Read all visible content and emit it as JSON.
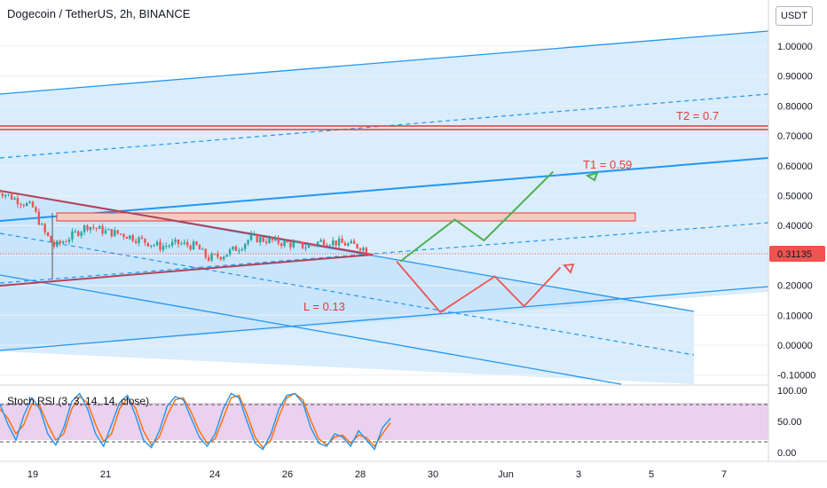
{
  "header": {
    "symbol_title": "Dogecoin / TetherUS, 2h, BINANCE",
    "currency_button": "USDT"
  },
  "colors": {
    "channel_line": "#2196f3",
    "channel_fill": "#bbdefb",
    "resistance_red": "#e53935",
    "zone_fill": "#f8c9c1",
    "triangle_line": "#b0435a",
    "bull_path": "#4caf50",
    "bear_path": "#ef5350",
    "candle_up": "#26a69a",
    "candle_down": "#ef5350",
    "price_tag": "#ef5350",
    "stoch_k": "#2196f3",
    "stoch_d": "#ff6d00",
    "stoch_band": "#e1bee7"
  },
  "chart_data": {
    "type": "candlestick",
    "title": "Dogecoin / TetherUS, 2h, BINANCE",
    "price_axis": {
      "ticks": [
        "1.00000",
        "0.90000",
        "0.80000",
        "0.70000",
        "0.60000",
        "0.50000",
        "0.40000",
        "0.30000",
        "0.20000",
        "0.10000",
        "0.00000",
        "-0.10000"
      ],
      "range": [
        -0.12,
        1.05
      ],
      "last_price": "0.31135"
    },
    "time_axis": {
      "ticks": [
        "19",
        "21",
        "24",
        "26",
        "28",
        "30",
        "Jun",
        "3",
        "5",
        "7"
      ]
    },
    "price_path": {
      "dates": [
        18.0,
        18.5,
        19.0,
        19.3,
        19.6,
        20.0,
        20.5,
        21.0,
        21.5,
        22.0,
        22.5,
        23.0,
        23.5,
        23.8,
        24.2,
        24.7,
        25.0,
        25.5,
        26.0,
        26.5,
        27.0,
        27.5,
        28.0,
        28.3
      ],
      "closes": [
        0.52,
        0.49,
        0.46,
        0.38,
        0.33,
        0.36,
        0.4,
        0.38,
        0.37,
        0.35,
        0.33,
        0.34,
        0.33,
        0.29,
        0.3,
        0.33,
        0.36,
        0.35,
        0.34,
        0.33,
        0.35,
        0.34,
        0.33,
        0.31
      ]
    },
    "annotations": [
      {
        "label": "T2 = 0.7",
        "value": 0.73
      },
      {
        "label": "T1 = 0.59",
        "value": 0.59
      },
      {
        "label": "L = 0.13",
        "value": 0.13
      }
    ],
    "projection_bull": {
      "dates": [
        29.1,
        30.6,
        31.4,
        33.3
      ],
      "values": [
        0.28,
        0.42,
        0.35,
        0.58
      ]
    },
    "projection_bear": {
      "dates": [
        29.0,
        30.2,
        31.7,
        32.5,
        33.5
      ],
      "values": [
        0.28,
        0.11,
        0.23,
        0.13,
        0.26
      ]
    },
    "stoch_rsi": {
      "label": "Stoch RSI (3, 3, 14, 14, close)",
      "ticks": [
        "100.00",
        "50.00",
        "0.00"
      ],
      "upper_band": 80,
      "lower_band": 20,
      "k": [
        78,
        45,
        20,
        60,
        88,
        70,
        30,
        12,
        40,
        82,
        95,
        70,
        30,
        10,
        45,
        80,
        92,
        60,
        20,
        8,
        35,
        75,
        90,
        85,
        55,
        25,
        10,
        30,
        70,
        95,
        88,
        50,
        15,
        5,
        30,
        70,
        92,
        95,
        80,
        40,
        15,
        10,
        30,
        25,
        10,
        35,
        20,
        5,
        40,
        55
      ],
      "d": [
        70,
        55,
        30,
        45,
        78,
        75,
        45,
        20,
        30,
        70,
        90,
        80,
        45,
        18,
        30,
        70,
        88,
        72,
        35,
        12,
        25,
        60,
        85,
        88,
        65,
        35,
        15,
        22,
        55,
        88,
        92,
        62,
        25,
        8,
        20,
        58,
        88,
        95,
        85,
        52,
        22,
        12,
        25,
        28,
        15,
        28,
        24,
        10,
        30,
        48
      ]
    }
  }
}
